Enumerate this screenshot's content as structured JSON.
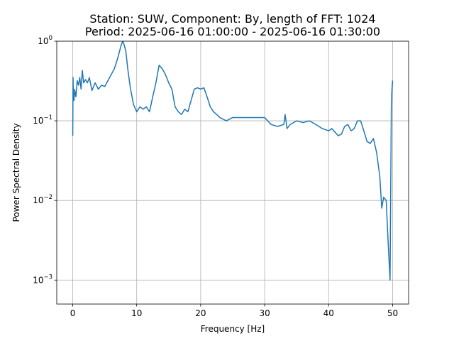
{
  "chart_data": {
    "type": "line",
    "title_line1": "Station: SUW, Component: By, length of FFT: 1024",
    "title_line2": "Period: 2025-06-16 01:00:00 - 2025-06-16 01:30:00",
    "xlabel": "Frequency [Hz]",
    "ylabel": "Power Spectral Density",
    "xlim": [
      -2.5,
      52.5
    ],
    "ylim": [
      0.0005,
      1
    ],
    "yscale": "log",
    "grid": true,
    "line_color": "#1f77b4",
    "x_ticks": [
      0,
      10,
      20,
      30,
      40,
      50
    ],
    "x_tick_labels": [
      "0",
      "10",
      "20",
      "30",
      "40",
      "50"
    ],
    "y_ticks": [
      0.001,
      0.01,
      0.1,
      1
    ],
    "y_tick_labels": [
      {
        "base": "10",
        "exp": "−3"
      },
      {
        "base": "10",
        "exp": "−2"
      },
      {
        "base": "10",
        "exp": "−1"
      },
      {
        "base": "10",
        "exp": "0"
      }
    ],
    "series": [
      {
        "x": [
          0.0,
          0.05,
          0.1,
          0.2,
          0.3,
          0.5,
          0.7,
          0.9,
          1.1,
          1.3,
          1.5,
          1.7,
          2.0,
          2.3,
          2.6,
          3.0,
          3.5,
          4.0,
          4.5,
          5.0,
          5.5,
          6.0,
          6.5,
          7.0,
          7.5,
          7.8,
          8.0,
          8.3,
          8.6,
          9.0,
          9.5,
          10.0,
          10.5,
          11.0,
          11.5,
          12.0,
          12.5,
          13.0,
          13.5,
          14.0,
          14.5,
          15.0,
          15.5,
          16.0,
          16.5,
          17.0,
          17.5,
          18.0,
          18.5,
          19.0,
          19.5,
          20.0,
          20.5,
          21.0,
          21.5,
          22.0,
          22.5,
          23.0,
          24.0,
          25.0,
          26.0,
          27.0,
          28.0,
          29.0,
          30.0,
          31.0,
          32.0,
          33.0,
          33.2,
          33.5,
          34.0,
          35.0,
          36.0,
          37.0,
          38.0,
          39.0,
          40.0,
          40.5,
          41.0,
          41.5,
          42.0,
          42.5,
          43.0,
          43.5,
          44.0,
          44.5,
          45.0,
          45.5,
          46.0,
          46.5,
          47.0,
          47.5,
          48.0,
          48.3,
          48.6,
          49.0,
          49.3,
          49.6,
          49.8,
          49.9,
          50.0
        ],
        "values": [
          0.065,
          0.35,
          0.2,
          0.18,
          0.25,
          0.2,
          0.32,
          0.28,
          0.35,
          0.25,
          0.43,
          0.3,
          0.33,
          0.3,
          0.35,
          0.24,
          0.3,
          0.25,
          0.28,
          0.27,
          0.32,
          0.38,
          0.45,
          0.6,
          0.85,
          1.0,
          0.92,
          0.75,
          0.45,
          0.26,
          0.16,
          0.13,
          0.15,
          0.14,
          0.15,
          0.13,
          0.2,
          0.3,
          0.5,
          0.45,
          0.38,
          0.3,
          0.25,
          0.15,
          0.13,
          0.12,
          0.14,
          0.13,
          0.18,
          0.25,
          0.26,
          0.25,
          0.26,
          0.2,
          0.15,
          0.13,
          0.12,
          0.11,
          0.1,
          0.11,
          0.11,
          0.11,
          0.11,
          0.11,
          0.11,
          0.09,
          0.085,
          0.09,
          0.12,
          0.08,
          0.09,
          0.1,
          0.095,
          0.1,
          0.09,
          0.08,
          0.075,
          0.08,
          0.072,
          0.065,
          0.068,
          0.085,
          0.09,
          0.075,
          0.08,
          0.1,
          0.1,
          0.075,
          0.055,
          0.052,
          0.06,
          0.04,
          0.02,
          0.008,
          0.011,
          0.01,
          0.003,
          0.001,
          0.15,
          0.25,
          0.32
        ]
      }
    ]
  }
}
